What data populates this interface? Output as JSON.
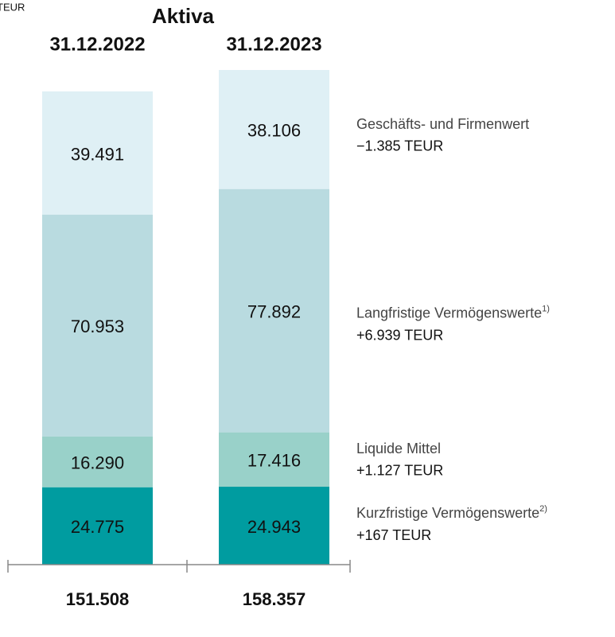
{
  "chart_data": {
    "type": "stacked-bar",
    "unit": "TEUR",
    "title": "Aktiva",
    "categories": [
      "31.12.2022",
      "31.12.2023"
    ],
    "series": [
      {
        "name": "Kurzfristige Vermögenswerte",
        "footnote": "2)",
        "change": "+167 TEUR",
        "color": "#009ca0",
        "values": [
          24775,
          24943
        ],
        "value_labels": [
          "24.775",
          "24.943"
        ]
      },
      {
        "name": "Liquide Mittel",
        "change": "+1.127 TEUR",
        "color": "#99d1c9",
        "values": [
          16290,
          17416
        ],
        "value_labels": [
          "16.290",
          "17.416"
        ]
      },
      {
        "name": "Langfristige Vermögenswerte",
        "footnote": "1)",
        "change": "+6.939 TEUR",
        "color": "#b9dbe0",
        "values": [
          70953,
          77892
        ],
        "value_labels": [
          "70.953",
          "77.892"
        ]
      },
      {
        "name": "Geschäfts- und Firmenwert",
        "change": "−1.385 TEUR",
        "color": "#dff0f5",
        "values": [
          39491,
          38106
        ],
        "value_labels": [
          "39.491",
          "38.106"
        ]
      }
    ],
    "totals": {
      "values": [
        151508,
        158357
      ],
      "value_labels": [
        "151.508",
        "158.357"
      ]
    }
  }
}
